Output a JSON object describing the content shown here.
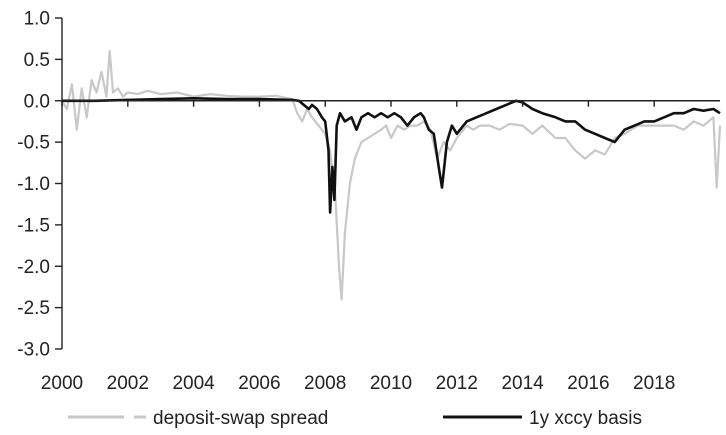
{
  "chart_data": {
    "type": "line",
    "title": "",
    "xlabel": "",
    "ylabel": "",
    "xlim": [
      2000,
      2020
    ],
    "ylim": [
      -3.0,
      1.0
    ],
    "x_ticks": [
      "2000",
      "2002",
      "2004",
      "2006",
      "2008",
      "2010",
      "2012",
      "2014",
      "2016",
      "2018"
    ],
    "y_ticks": [
      "1.0",
      "0.5",
      "0.0",
      "-0.5",
      "-1.0",
      "-1.5",
      "-2.0",
      "-2.5",
      "-3.0"
    ],
    "grid": false,
    "legend_position": "bottom",
    "series": [
      {
        "name": "deposit-swap spread",
        "color": "#c8c8c8",
        "line_style": "dashed",
        "x": [
          2000.0,
          2000.15,
          2000.3,
          2000.45,
          2000.6,
          2000.75,
          2000.9,
          2001.05,
          2001.2,
          2001.35,
          2001.45,
          2001.55,
          2001.7,
          2001.85,
          2002.0,
          2002.3,
          2002.6,
          2003.0,
          2003.5,
          2004.0,
          2004.5,
          2005.0,
          2005.5,
          2006.0,
          2006.5,
          2007.0,
          2007.15,
          2007.3,
          2007.45,
          2007.6,
          2007.8,
          2008.0,
          2008.15,
          2008.3,
          2008.42,
          2008.5,
          2008.6,
          2008.75,
          2008.9,
          2009.1,
          2009.3,
          2009.5,
          2009.7,
          2009.85,
          2010.0,
          2010.2,
          2010.4,
          2010.6,
          2010.8,
          2011.0,
          2011.2,
          2011.4,
          2011.6,
          2011.8,
          2012.0,
          2012.3,
          2012.5,
          2012.7,
          2013.0,
          2013.3,
          2013.6,
          2014.0,
          2014.3,
          2014.6,
          2015.0,
          2015.3,
          2015.6,
          2015.9,
          2016.2,
          2016.5,
          2016.8,
          2017.1,
          2017.5,
          2018.0,
          2018.3,
          2018.6,
          2018.9,
          2019.2,
          2019.5,
          2019.8,
          2019.9,
          2020.0
        ],
        "values": [
          0.0,
          -0.1,
          0.2,
          -0.35,
          0.15,
          -0.2,
          0.25,
          0.1,
          0.35,
          0.05,
          0.6,
          0.1,
          0.15,
          0.05,
          0.1,
          0.08,
          0.12,
          0.08,
          0.1,
          0.05,
          0.08,
          0.06,
          0.05,
          0.05,
          0.06,
          0.02,
          -0.15,
          -0.25,
          -0.1,
          -0.2,
          -0.3,
          -0.4,
          -0.6,
          -1.1,
          -2.0,
          -2.4,
          -1.6,
          -1.0,
          -0.7,
          -0.5,
          -0.45,
          -0.4,
          -0.35,
          -0.3,
          -0.45,
          -0.3,
          -0.35,
          -0.3,
          -0.3,
          -0.25,
          -0.35,
          -0.7,
          -0.5,
          -0.6,
          -0.45,
          -0.3,
          -0.35,
          -0.3,
          -0.3,
          -0.35,
          -0.28,
          -0.3,
          -0.4,
          -0.3,
          -0.45,
          -0.45,
          -0.6,
          -0.7,
          -0.6,
          -0.65,
          -0.45,
          -0.4,
          -0.3,
          -0.3,
          -0.3,
          -0.3,
          -0.35,
          -0.25,
          -0.3,
          -0.2,
          -1.05,
          -0.3
        ]
      },
      {
        "name": "1y xccy basis",
        "color": "#111111",
        "line_style": "solid",
        "x": [
          2000.0,
          2001.0,
          2002.0,
          2003.0,
          2004.0,
          2005.0,
          2006.0,
          2007.0,
          2007.2,
          2007.35,
          2007.5,
          2007.6,
          2007.75,
          2007.9,
          2008.0,
          2008.1,
          2008.15,
          2008.22,
          2008.28,
          2008.35,
          2008.45,
          2008.6,
          2008.8,
          2008.95,
          2009.1,
          2009.3,
          2009.5,
          2009.7,
          2009.9,
          2010.1,
          2010.3,
          2010.5,
          2010.7,
          2010.9,
          2011.0,
          2011.15,
          2011.3,
          2011.45,
          2011.55,
          2011.7,
          2011.85,
          2012.0,
          2012.3,
          2012.6,
          2012.9,
          2013.2,
          2013.5,
          2013.8,
          2014.0,
          2014.3,
          2014.6,
          2015.0,
          2015.3,
          2015.6,
          2015.9,
          2016.2,
          2016.5,
          2016.8,
          2017.1,
          2017.4,
          2017.7,
          2018.0,
          2018.3,
          2018.6,
          2018.9,
          2019.2,
          2019.5,
          2019.8,
          2020.0
        ],
        "values": [
          0.0,
          0.0,
          0.01,
          0.02,
          0.03,
          0.02,
          0.02,
          0.01,
          0.0,
          -0.05,
          -0.1,
          -0.05,
          -0.1,
          -0.2,
          -0.25,
          -0.6,
          -1.35,
          -0.8,
          -1.2,
          -0.3,
          -0.15,
          -0.25,
          -0.2,
          -0.35,
          -0.2,
          -0.15,
          -0.2,
          -0.15,
          -0.2,
          -0.15,
          -0.2,
          -0.3,
          -0.2,
          -0.15,
          -0.2,
          -0.35,
          -0.4,
          -0.8,
          -1.05,
          -0.5,
          -0.3,
          -0.4,
          -0.25,
          -0.2,
          -0.15,
          -0.1,
          -0.05,
          0.0,
          -0.02,
          -0.1,
          -0.15,
          -0.2,
          -0.25,
          -0.25,
          -0.35,
          -0.4,
          -0.45,
          -0.5,
          -0.35,
          -0.3,
          -0.25,
          -0.25,
          -0.2,
          -0.15,
          -0.15,
          -0.1,
          -0.12,
          -0.1,
          -0.15
        ]
      }
    ]
  }
}
